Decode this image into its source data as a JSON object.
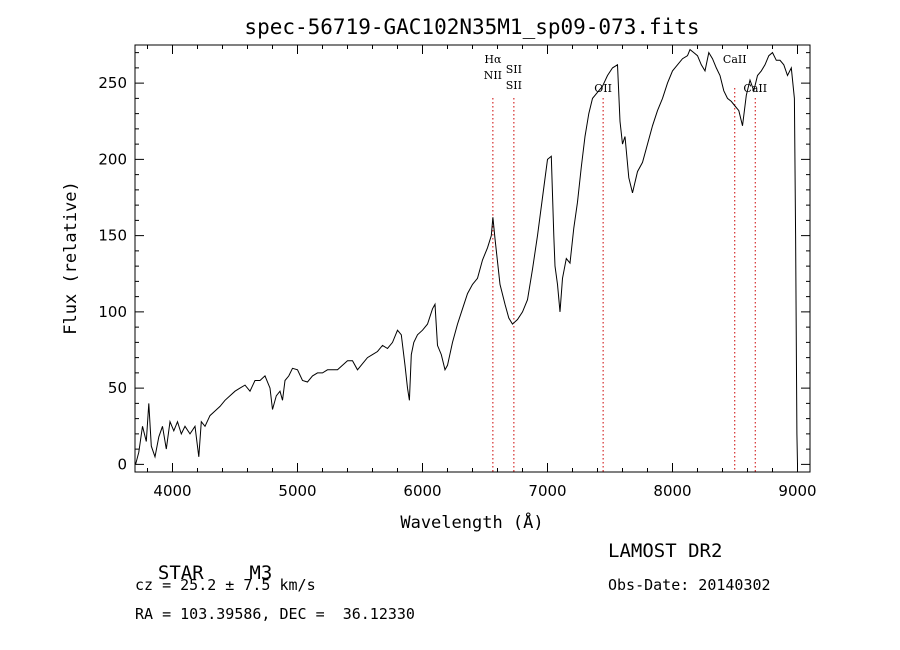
{
  "chart_data": {
    "type": "line",
    "title": "spec-56719-GAC102N35M1_sp09-073.fits",
    "xlabel": "Wavelength (Å)",
    "ylabel": "Flux (relative)",
    "xlim": [
      3700,
      9100
    ],
    "ylim": [
      -5,
      275
    ],
    "x_ticks": [
      4000,
      5000,
      6000,
      7000,
      8000,
      9000
    ],
    "y_ticks": [
      0,
      50,
      100,
      150,
      200,
      250
    ],
    "line_color": "#000000",
    "marker_color": "#cc0000",
    "series": [
      {
        "x": [
          3705,
          3730,
          3760,
          3790,
          3810,
          3830,
          3860,
          3890,
          3920,
          3950,
          3980,
          4010,
          4040,
          4070,
          4100,
          4140,
          4180,
          4210,
          4230,
          4260,
          4300,
          4340,
          4380,
          4420,
          4460,
          4500,
          4540,
          4580,
          4620,
          4660,
          4700,
          4740,
          4780,
          4800,
          4830,
          4860,
          4880,
          4900,
          4930,
          4960,
          5000,
          5040,
          5080,
          5120,
          5160,
          5200,
          5240,
          5280,
          5320,
          5360,
          5400,
          5440,
          5480,
          5520,
          5560,
          5600,
          5640,
          5680,
          5720,
          5760,
          5800,
          5830,
          5860,
          5880,
          5895,
          5910,
          5930,
          5960,
          6000,
          6040,
          6080,
          6100,
          6120,
          6150,
          6180,
          6200,
          6240,
          6280,
          6320,
          6360,
          6400,
          6440,
          6480,
          6520,
          6550,
          6563,
          6580,
          6620,
          6660,
          6690,
          6720,
          6760,
          6800,
          6840,
          6880,
          6920,
          6960,
          7000,
          7030,
          7050,
          7060,
          7080,
          7100,
          7120,
          7150,
          7180,
          7210,
          7240,
          7270,
          7300,
          7330,
          7360,
          7400,
          7440,
          7480,
          7520,
          7560,
          7580,
          7600,
          7620,
          7650,
          7680,
          7720,
          7760,
          7800,
          7840,
          7880,
          7920,
          7960,
          8000,
          8040,
          8080,
          8120,
          8140,
          8170,
          8200,
          8230,
          8260,
          8290,
          8320,
          8350,
          8380,
          8410,
          8440,
          8470,
          8500,
          8530,
          8560,
          8590,
          8620,
          8650,
          8680,
          8710,
          8740,
          8770,
          8800,
          8830,
          8860,
          8890,
          8920,
          8950,
          8975,
          8985,
          8995,
          9000
        ],
        "y": [
          0,
          8,
          25,
          15,
          40,
          12,
          5,
          18,
          25,
          10,
          28,
          22,
          28,
          20,
          25,
          20,
          25,
          5,
          28,
          25,
          32,
          35,
          38,
          42,
          45,
          48,
          50,
          52,
          48,
          55,
          55,
          58,
          50,
          36,
          45,
          48,
          42,
          55,
          58,
          63,
          62,
          55,
          54,
          58,
          60,
          60,
          62,
          62,
          62,
          65,
          68,
          68,
          62,
          66,
          70,
          72,
          74,
          78,
          76,
          80,
          88,
          85,
          65,
          50,
          42,
          72,
          80,
          85,
          88,
          92,
          102,
          105,
          78,
          72,
          62,
          65,
          80,
          92,
          102,
          112,
          118,
          122,
          134,
          142,
          150,
          162,
          148,
          118,
          105,
          96,
          92,
          95,
          100,
          108,
          128,
          150,
          175,
          200,
          202,
          150,
          130,
          118,
          100,
          122,
          135,
          132,
          155,
          172,
          195,
          215,
          230,
          240,
          244,
          248,
          255,
          260,
          262,
          225,
          210,
          215,
          188,
          178,
          192,
          198,
          210,
          222,
          232,
          240,
          250,
          258,
          262,
          266,
          268,
          272,
          270,
          268,
          262,
          258,
          270,
          266,
          260,
          255,
          245,
          240,
          238,
          235,
          232,
          222,
          242,
          252,
          245,
          255,
          258,
          262,
          268,
          270,
          265,
          265,
          262,
          255,
          260,
          240,
          150,
          20,
          0
        ]
      }
    ],
    "line_markers": [
      {
        "x": 6563,
        "labels": [
          "Hα",
          "NII"
        ]
      },
      {
        "x": 6731,
        "labels": [
          "SII",
          "SII"
        ]
      },
      {
        "x": 7445,
        "labels": [
          "OII"
        ]
      },
      {
        "x": 8498,
        "labels": [
          "CaII"
        ]
      },
      {
        "x": 8662,
        "labels": [
          "CaII"
        ]
      }
    ]
  },
  "info": {
    "object_class": "STAR",
    "subclass": "M3",
    "cz": "cz = 25.2 ± 7.5 km/s",
    "coords": "RA = 103.39586, DEC =  36.12330",
    "survey": "LAMOST DR2",
    "obs_date": "Obs-Date: 20140302"
  }
}
